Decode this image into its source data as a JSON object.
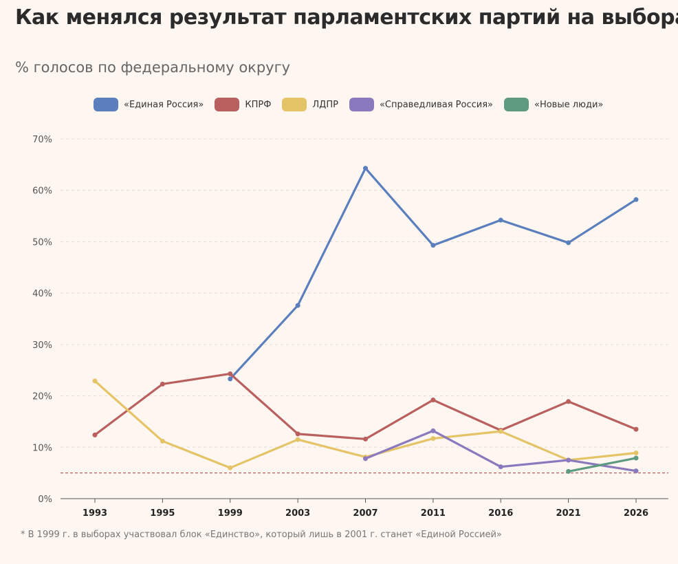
{
  "title": "Как менялся результат парламентских партий на выборах",
  "subtitle": "% голосов по федеральному округу",
  "footnote": "* В 1999 г. в выборах участвовал блок «Единство», который лишь в 2001 г. станет «Единой Россией»",
  "chart_data": {
    "type": "line",
    "title": "Как менялся результат парламентских партий на выборах",
    "subtitle": "% голосов по федеральному округу",
    "xlabel": "",
    "ylabel": "",
    "categories": [
      "1993",
      "1995",
      "1999",
      "2003",
      "2007",
      "2011",
      "2016",
      "2021",
      "2026"
    ],
    "ylim": [
      0,
      70
    ],
    "yticks": [
      "0%",
      "10%",
      "20%",
      "30%",
      "40%",
      "50%",
      "60%",
      "70%"
    ],
    "grid": true,
    "legend_position": "top",
    "threshold": 5,
    "series": [
      {
        "name": "«Единая Россия»",
        "color": "#5b7fbd",
        "values": [
          null,
          null,
          23.3,
          37.6,
          64.3,
          49.3,
          54.2,
          49.8,
          58.2
        ]
      },
      {
        "name": "КПРФ",
        "color": "#b9605f",
        "values": [
          12.4,
          22.3,
          24.3,
          12.6,
          11.6,
          19.2,
          13.3,
          18.9,
          13.5
        ]
      },
      {
        "name": "ЛДПР",
        "color": "#e5c468",
        "values": [
          22.9,
          11.2,
          6.0,
          11.5,
          8.1,
          11.7,
          13.1,
          7.5,
          8.9
        ]
      },
      {
        "name": "«Справедливая Россия»",
        "color": "#8b79bd",
        "values": [
          null,
          null,
          null,
          null,
          7.8,
          13.2,
          6.2,
          7.5,
          5.4
        ]
      },
      {
        "name": "«Новые люди»",
        "color": "#5e9a80",
        "values": [
          null,
          null,
          null,
          null,
          null,
          null,
          null,
          5.3,
          7.9
        ]
      }
    ]
  }
}
